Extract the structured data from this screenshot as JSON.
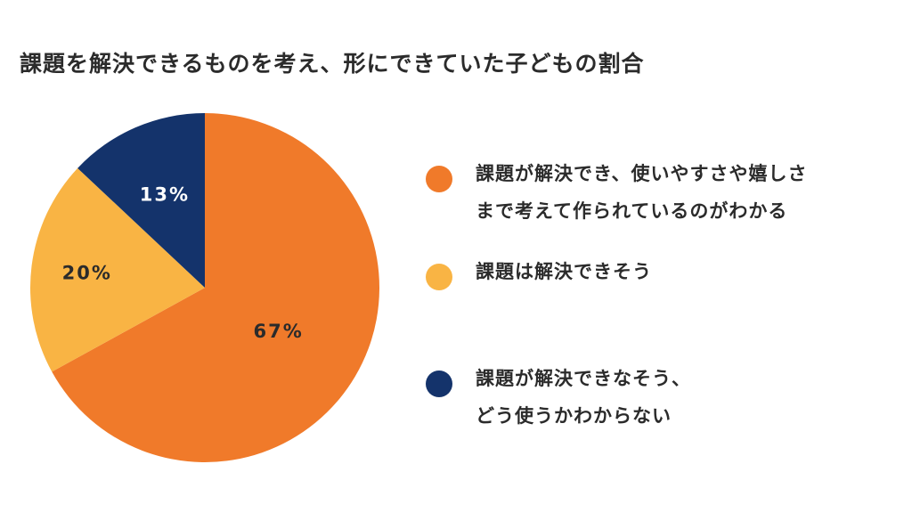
{
  "chart_data": {
    "type": "pie",
    "title": "課題を解決できるものを考え、形にできていた子どもの割合",
    "slices": [
      {
        "label_lines": [
          "課題が解決でき、使いやすさや嬉しさ",
          "まで考えて作られているのがわかる"
        ],
        "value": 67,
        "display": "67%",
        "color": "#F07A2A",
        "text_color": "#2b2b2b"
      },
      {
        "label_lines": [
          "課題は解決できそう"
        ],
        "value": 20,
        "display": "20%",
        "color": "#F9B444",
        "text_color": "#2b2b2b"
      },
      {
        "label_lines": [
          "課題が解決できなそう、",
          "どう使うかわからない"
        ],
        "value": 13,
        "display": "13%",
        "color": "#14336B",
        "text_color": "#ffffff"
      }
    ],
    "start": "top",
    "direction": "clockwise",
    "legend_position": "right"
  }
}
